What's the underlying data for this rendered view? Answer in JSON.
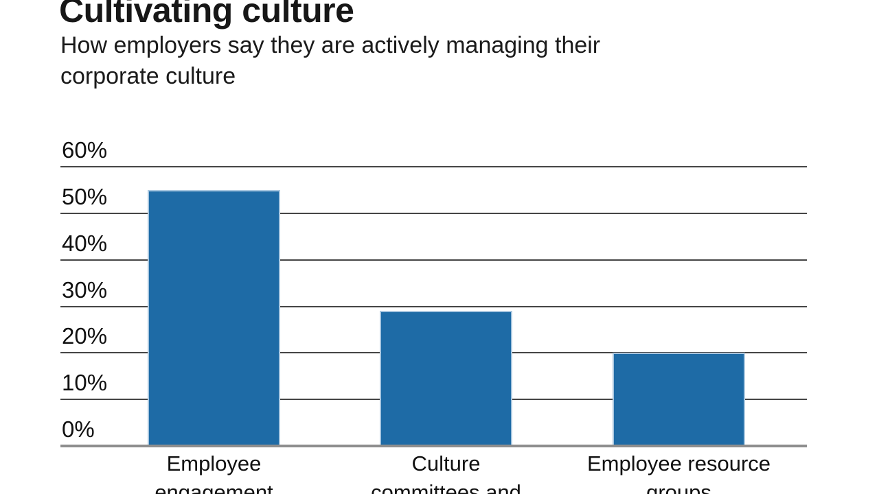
{
  "header": {
    "title": "Cultivating culture",
    "subtitle_lines": [
      "How employers say they are actively managing their",
      "corporate culture"
    ]
  },
  "chart_data": {
    "type": "bar",
    "title": "Cultivating culture",
    "subtitle": "How employers say they are actively managing their corporate culture",
    "categories": [
      "Employee engagement",
      "Culture committees and",
      "Employee resource groups"
    ],
    "category_label_lines": [
      [
        "Employee",
        "engagement"
      ],
      [
        "Culture",
        "committees and"
      ],
      [
        "Employee resource",
        "groups"
      ]
    ],
    "values": [
      55,
      29,
      20
    ],
    "unit": "%",
    "xlabel": "",
    "ylabel": "",
    "ylim": [
      0,
      60
    ],
    "yticks": [
      60,
      50,
      40,
      30,
      20,
      10,
      0
    ],
    "ytick_labels": [
      "60%",
      "50%",
      "40%",
      "30%",
      "20%",
      "10%",
      "0%"
    ],
    "grid": true,
    "legend": "none",
    "colors": {
      "bar_fill": "#1e6ba6",
      "bar_edge": "#a9c7e0",
      "gridline": "#454545",
      "axis_baseline": "#8e8e8e",
      "text": "#111111",
      "background": "#ffffff"
    }
  }
}
